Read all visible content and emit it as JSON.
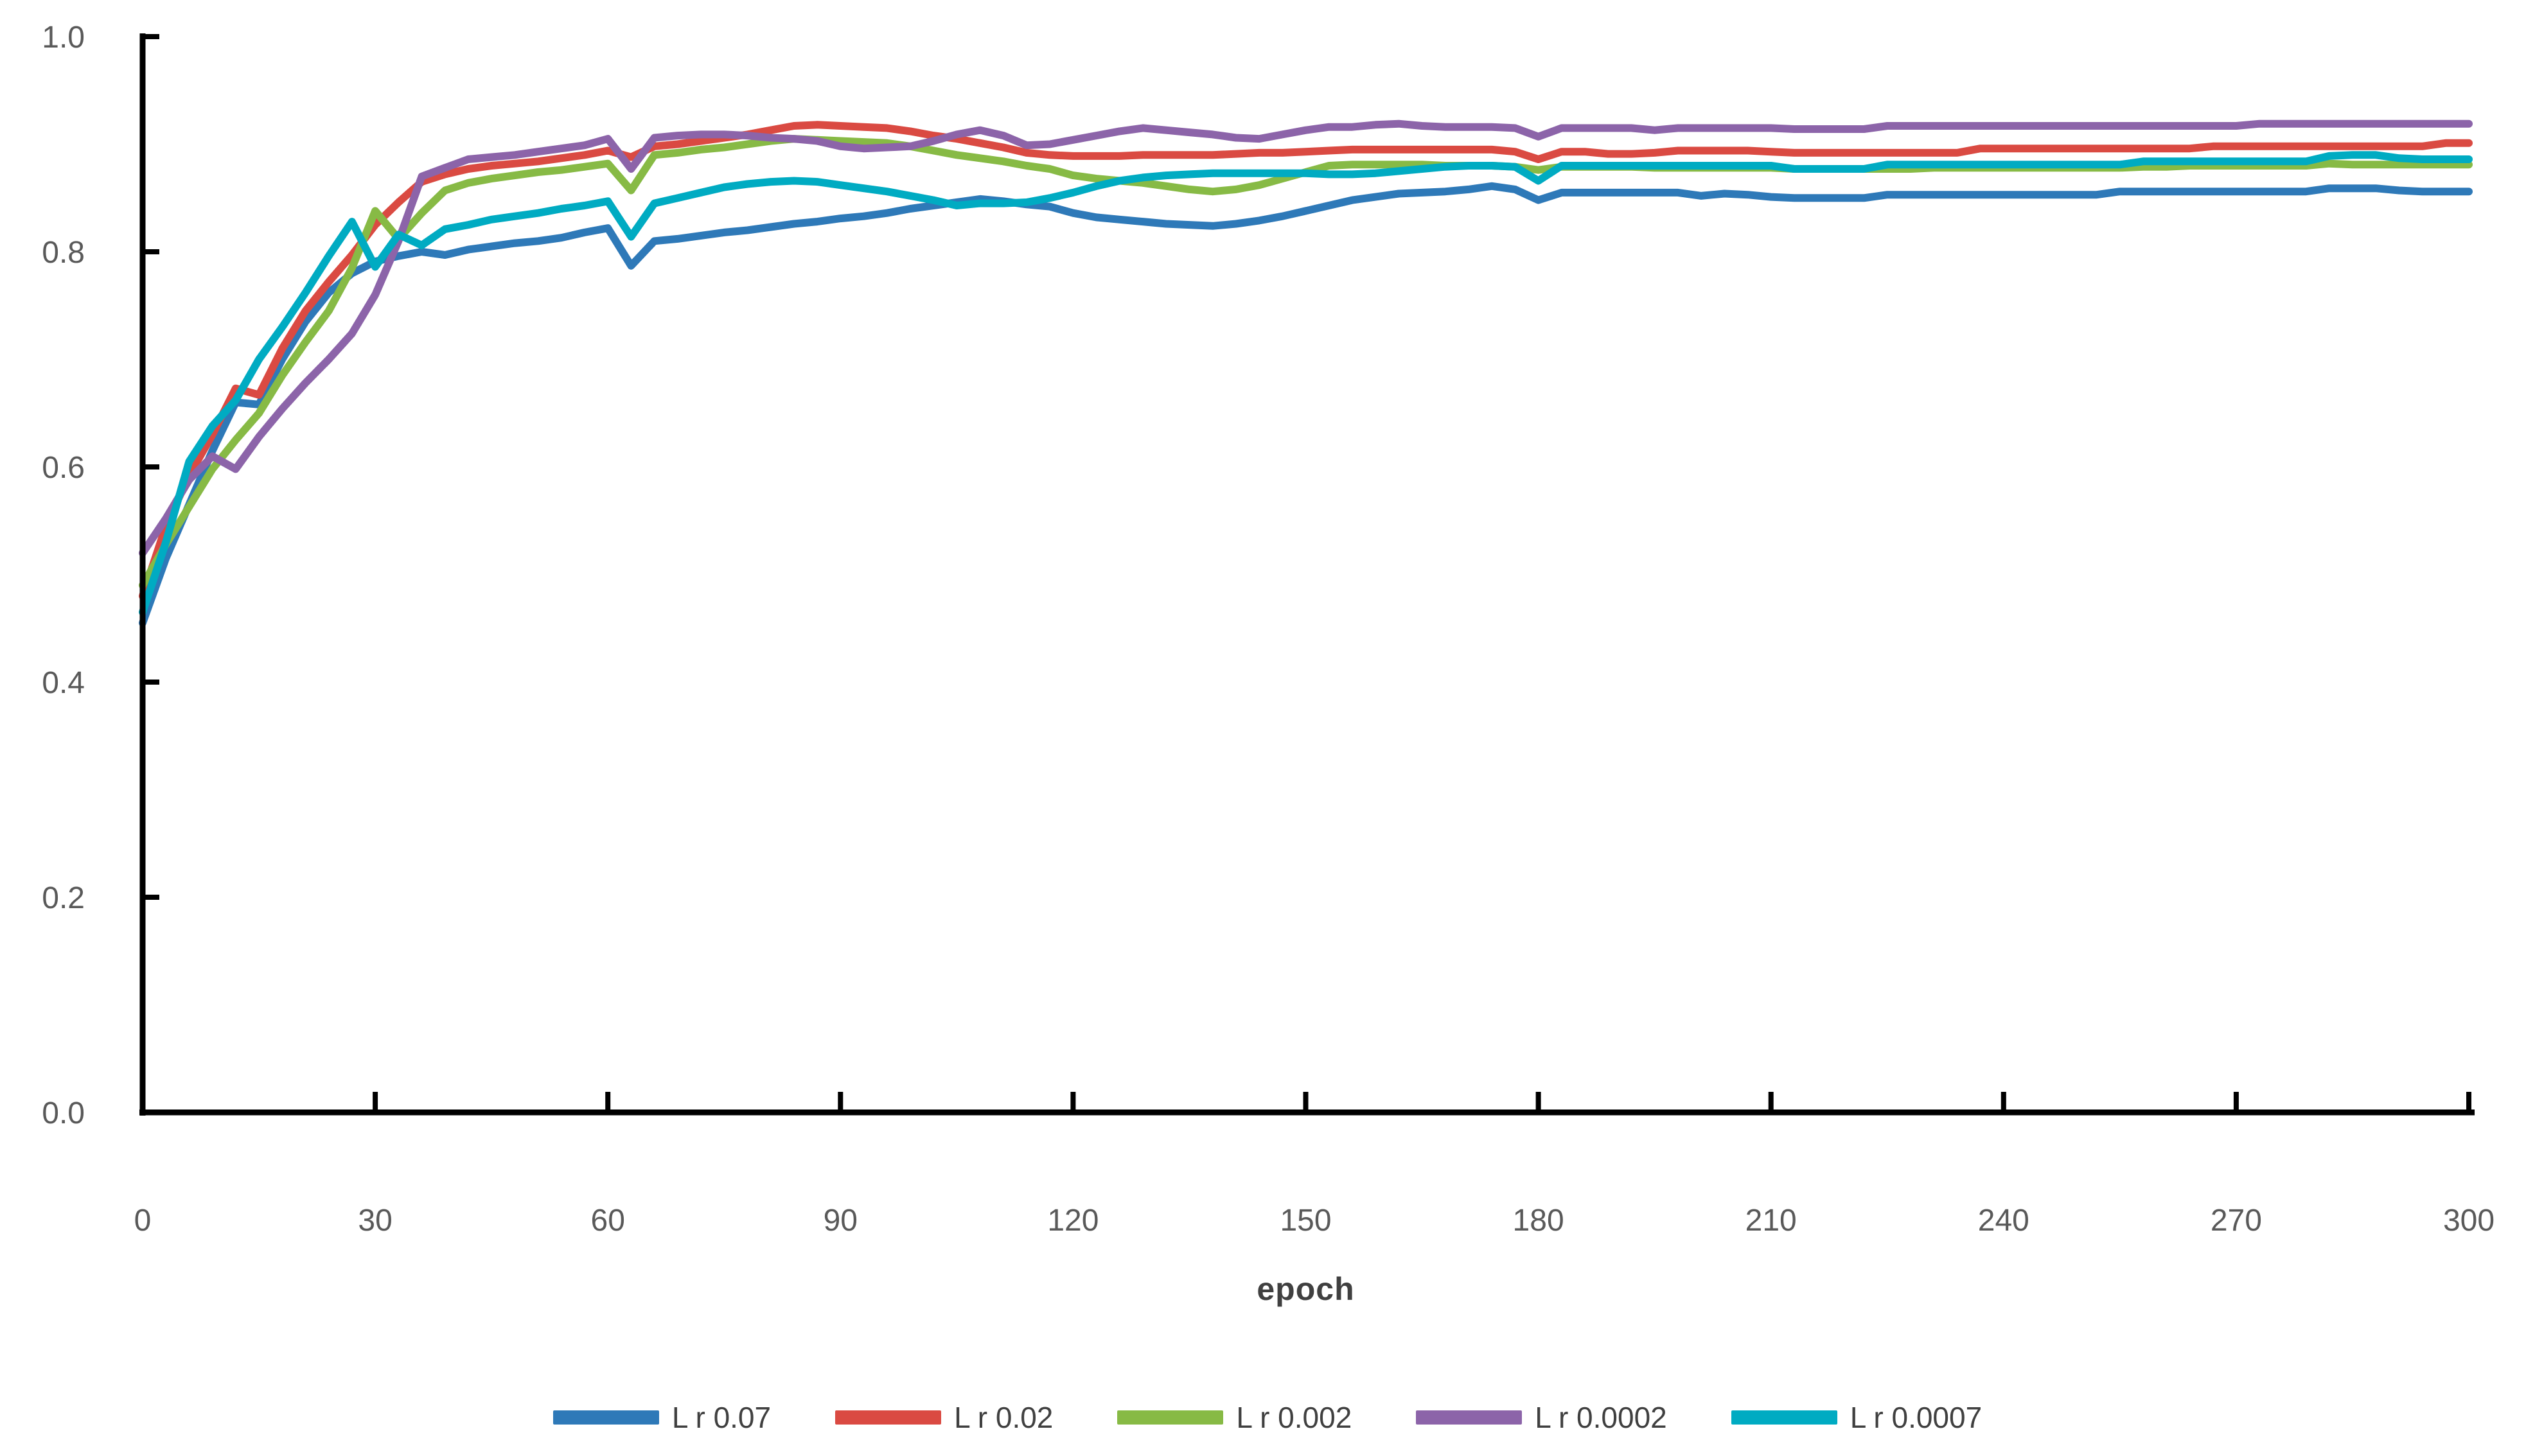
{
  "page": {
    "background": "#ffffff"
  },
  "chart_data": {
    "type": "line",
    "title": "",
    "xlabel": "epoch",
    "ylabel": "",
    "xlim": [
      0,
      300
    ],
    "ylim": [
      0.0,
      1.0
    ],
    "grid": false,
    "legend_position": "bottom-center",
    "axis_color": "#000000",
    "tick_label_color": "#595959",
    "axis_title_color": "#404040",
    "x_ticks": [
      0,
      30,
      60,
      90,
      120,
      150,
      180,
      210,
      240,
      270,
      300
    ],
    "y_ticks": [
      0.0,
      0.2,
      0.4,
      0.6,
      0.8,
      1.0
    ],
    "y_tick_labels": [
      "0.0",
      "0.2",
      "0.4",
      "0.6",
      "0.8",
      "1.0"
    ],
    "x": [
      0,
      3,
      6,
      9,
      12,
      15,
      18,
      21,
      24,
      27,
      30,
      33,
      36,
      39,
      42,
      45,
      48,
      51,
      54,
      57,
      60,
      63,
      66,
      69,
      72,
      75,
      78,
      81,
      84,
      87,
      90,
      93,
      96,
      99,
      102,
      105,
      108,
      111,
      114,
      117,
      120,
      123,
      126,
      129,
      132,
      135,
      138,
      141,
      144,
      147,
      150,
      153,
      156,
      159,
      162,
      165,
      168,
      171,
      174,
      177,
      180,
      183,
      186,
      189,
      192,
      195,
      198,
      201,
      204,
      207,
      210,
      213,
      216,
      219,
      222,
      225,
      228,
      231,
      234,
      237,
      240,
      243,
      246,
      249,
      252,
      255,
      258,
      261,
      264,
      267,
      270,
      273,
      276,
      279,
      282,
      285,
      288,
      291,
      294,
      297,
      300
    ],
    "series": [
      {
        "name": "L r 0.07",
        "color": "#2E79B8",
        "values": [
          0.455,
          0.515,
          0.565,
          0.615,
          0.66,
          0.658,
          0.7,
          0.735,
          0.762,
          0.78,
          0.791,
          0.796,
          0.8,
          0.797,
          0.802,
          0.805,
          0.808,
          0.81,
          0.813,
          0.818,
          0.822,
          0.787,
          0.81,
          0.812,
          0.815,
          0.818,
          0.82,
          0.823,
          0.826,
          0.828,
          0.831,
          0.833,
          0.836,
          0.84,
          0.843,
          0.846,
          0.849,
          0.847,
          0.844,
          0.842,
          0.836,
          0.832,
          0.83,
          0.828,
          0.826,
          0.825,
          0.824,
          0.826,
          0.829,
          0.833,
          0.838,
          0.843,
          0.848,
          0.851,
          0.854,
          0.855,
          0.856,
          0.858,
          0.861,
          0.858,
          0.848,
          0.855,
          0.855,
          0.855,
          0.855,
          0.855,
          0.855,
          0.852,
          0.854,
          0.853,
          0.851,
          0.85,
          0.85,
          0.85,
          0.85,
          0.853,
          0.853,
          0.853,
          0.853,
          0.853,
          0.853,
          0.853,
          0.853,
          0.853,
          0.853,
          0.856,
          0.856,
          0.856,
          0.856,
          0.856,
          0.856,
          0.856,
          0.856,
          0.856,
          0.859,
          0.859,
          0.859,
          0.857,
          0.856,
          0.856,
          0.856
        ]
      },
      {
        "name": "L r 0.02",
        "color": "#DA4A42",
        "values": [
          0.48,
          0.545,
          0.592,
          0.63,
          0.673,
          0.667,
          0.71,
          0.745,
          0.772,
          0.797,
          0.825,
          0.846,
          0.865,
          0.872,
          0.877,
          0.88,
          0.882,
          0.884,
          0.887,
          0.89,
          0.894,
          0.888,
          0.898,
          0.9,
          0.903,
          0.906,
          0.909,
          0.913,
          0.917,
          0.918,
          0.917,
          0.916,
          0.915,
          0.912,
          0.908,
          0.905,
          0.901,
          0.897,
          0.892,
          0.89,
          0.889,
          0.889,
          0.889,
          0.89,
          0.89,
          0.89,
          0.89,
          0.891,
          0.892,
          0.892,
          0.893,
          0.894,
          0.895,
          0.895,
          0.895,
          0.895,
          0.895,
          0.895,
          0.895,
          0.893,
          0.886,
          0.893,
          0.893,
          0.891,
          0.891,
          0.892,
          0.894,
          0.894,
          0.894,
          0.894,
          0.893,
          0.892,
          0.892,
          0.892,
          0.892,
          0.892,
          0.892,
          0.892,
          0.892,
          0.896,
          0.896,
          0.896,
          0.896,
          0.896,
          0.896,
          0.896,
          0.896,
          0.896,
          0.896,
          0.898,
          0.898,
          0.898,
          0.898,
          0.898,
          0.898,
          0.898,
          0.898,
          0.898,
          0.898,
          0.901,
          0.901
        ]
      },
      {
        "name": "L r 0.002",
        "color": "#87BA45",
        "values": [
          0.49,
          0.528,
          0.563,
          0.598,
          0.625,
          0.65,
          0.685,
          0.716,
          0.745,
          0.785,
          0.838,
          0.812,
          0.836,
          0.857,
          0.864,
          0.868,
          0.871,
          0.874,
          0.876,
          0.879,
          0.882,
          0.857,
          0.89,
          0.892,
          0.895,
          0.897,
          0.9,
          0.903,
          0.905,
          0.904,
          0.903,
          0.902,
          0.901,
          0.898,
          0.894,
          0.89,
          0.887,
          0.884,
          0.88,
          0.877,
          0.871,
          0.868,
          0.866,
          0.864,
          0.861,
          0.858,
          0.856,
          0.858,
          0.862,
          0.868,
          0.874,
          0.88,
          0.881,
          0.881,
          0.881,
          0.881,
          0.88,
          0.88,
          0.88,
          0.879,
          0.876,
          0.879,
          0.879,
          0.879,
          0.879,
          0.878,
          0.878,
          0.878,
          0.878,
          0.878,
          0.878,
          0.877,
          0.877,
          0.877,
          0.877,
          0.877,
          0.877,
          0.878,
          0.878,
          0.878,
          0.878,
          0.878,
          0.878,
          0.878,
          0.878,
          0.878,
          0.879,
          0.879,
          0.88,
          0.88,
          0.88,
          0.88,
          0.88,
          0.88,
          0.882,
          0.881,
          0.881,
          0.881,
          0.881,
          0.881,
          0.881
        ]
      },
      {
        "name": "L r 0.0002",
        "color": "#8C64A9",
        "values": [
          0.52,
          0.552,
          0.588,
          0.61,
          0.598,
          0.628,
          0.654,
          0.678,
          0.7,
          0.724,
          0.76,
          0.81,
          0.87,
          0.878,
          0.886,
          0.888,
          0.89,
          0.893,
          0.896,
          0.899,
          0.905,
          0.877,
          0.906,
          0.908,
          0.909,
          0.909,
          0.908,
          0.906,
          0.905,
          0.903,
          0.898,
          0.896,
          0.897,
          0.898,
          0.903,
          0.909,
          0.913,
          0.908,
          0.899,
          0.9,
          0.904,
          0.908,
          0.912,
          0.915,
          0.913,
          0.911,
          0.909,
          0.906,
          0.905,
          0.909,
          0.913,
          0.916,
          0.916,
          0.918,
          0.919,
          0.917,
          0.916,
          0.916,
          0.916,
          0.915,
          0.907,
          0.915,
          0.915,
          0.915,
          0.915,
          0.913,
          0.915,
          0.915,
          0.915,
          0.915,
          0.915,
          0.914,
          0.914,
          0.914,
          0.914,
          0.917,
          0.917,
          0.917,
          0.917,
          0.917,
          0.917,
          0.917,
          0.917,
          0.917,
          0.917,
          0.917,
          0.917,
          0.917,
          0.917,
          0.917,
          0.917,
          0.919,
          0.919,
          0.919,
          0.919,
          0.919,
          0.919,
          0.919,
          0.919,
          0.919,
          0.919
        ]
      },
      {
        "name": "L r 0.0007",
        "color": "#00ABC2",
        "values": [
          0.465,
          0.53,
          0.605,
          0.638,
          0.662,
          0.7,
          0.73,
          0.762,
          0.796,
          0.828,
          0.786,
          0.816,
          0.806,
          0.821,
          0.825,
          0.83,
          0.833,
          0.836,
          0.84,
          0.843,
          0.847,
          0.814,
          0.845,
          0.85,
          0.855,
          0.86,
          0.863,
          0.865,
          0.866,
          0.865,
          0.862,
          0.859,
          0.856,
          0.852,
          0.848,
          0.843,
          0.845,
          0.845,
          0.846,
          0.85,
          0.855,
          0.861,
          0.866,
          0.869,
          0.871,
          0.872,
          0.873,
          0.873,
          0.873,
          0.873,
          0.873,
          0.872,
          0.872,
          0.873,
          0.875,
          0.877,
          0.879,
          0.88,
          0.88,
          0.879,
          0.866,
          0.88,
          0.88,
          0.88,
          0.88,
          0.88,
          0.88,
          0.88,
          0.88,
          0.88,
          0.88,
          0.877,
          0.877,
          0.877,
          0.877,
          0.881,
          0.881,
          0.881,
          0.881,
          0.881,
          0.881,
          0.881,
          0.881,
          0.881,
          0.881,
          0.881,
          0.884,
          0.884,
          0.884,
          0.884,
          0.884,
          0.884,
          0.884,
          0.884,
          0.889,
          0.89,
          0.89,
          0.887,
          0.886,
          0.886,
          0.886
        ]
      }
    ]
  }
}
